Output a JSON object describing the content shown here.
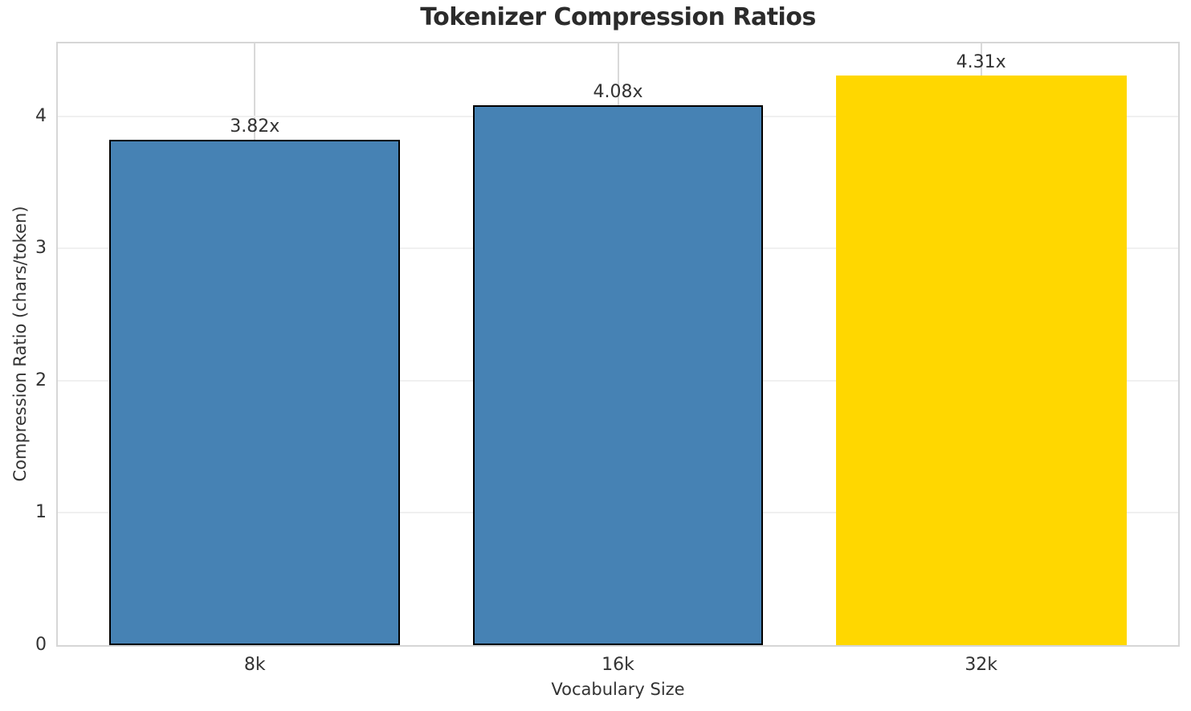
{
  "chart_data": {
    "type": "bar",
    "title": "Tokenizer Compression Ratios",
    "xlabel": "Vocabulary Size",
    "ylabel": "Compression Ratio (chars/token)",
    "categories": [
      "8k",
      "16k",
      "32k"
    ],
    "values": [
      3.82,
      4.08,
      4.31
    ],
    "bar_labels": [
      "3.82x",
      "4.08x",
      "4.31x"
    ],
    "bar_colors": [
      "#4682b4",
      "#4682b4",
      "#ffd700"
    ],
    "bar_edge_colors": [
      "#000000",
      "#000000",
      "none"
    ],
    "y_ticks": [
      0,
      1,
      2,
      3,
      4
    ],
    "ylim": [
      0,
      4.55
    ],
    "grid": "on",
    "legend_position": "none"
  },
  "colors": {
    "background": "#ffffff",
    "title_text": "#2b2b2b",
    "axis_text": "#333333",
    "spine": "#d6d6d6",
    "grid_horizontal": "#f0f0f0",
    "grid_vertical": "#d9d9d9",
    "bar_blue": "#4682b4",
    "bar_gold": "#ffd700",
    "bar_edge": "#000000"
  }
}
